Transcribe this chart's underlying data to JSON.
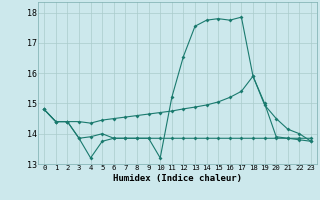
{
  "xlabel": "Humidex (Indice chaleur)",
  "bg_color": "#cce8ec",
  "grid_color": "#aacccc",
  "line_color": "#1a7a6e",
  "xlim": [
    -0.5,
    23.5
  ],
  "ylim": [
    13.0,
    18.35
  ],
  "yticks": [
    13,
    14,
    15,
    16,
    17,
    18
  ],
  "xticks": [
    0,
    1,
    2,
    3,
    4,
    5,
    6,
    7,
    8,
    9,
    10,
    11,
    12,
    13,
    14,
    15,
    16,
    17,
    18,
    19,
    20,
    21,
    22,
    23
  ],
  "line1_x": [
    0,
    1,
    2,
    3,
    4,
    5,
    6,
    7,
    8,
    9,
    10,
    11,
    12,
    13,
    14,
    15,
    16,
    17,
    18,
    19,
    20,
    21,
    22,
    23
  ],
  "line1_y": [
    14.8,
    14.4,
    14.4,
    13.85,
    13.2,
    13.75,
    13.85,
    13.85,
    13.85,
    13.85,
    13.85,
    13.85,
    13.85,
    13.85,
    13.85,
    13.85,
    13.85,
    13.85,
    13.85,
    13.85,
    13.85,
    13.85,
    13.85,
    13.85
  ],
  "line2_x": [
    0,
    1,
    2,
    3,
    4,
    5,
    6,
    7,
    8,
    9,
    10,
    11,
    12,
    13,
    14,
    15,
    16,
    17,
    18,
    19,
    20,
    21,
    22,
    23
  ],
  "line2_y": [
    14.8,
    14.4,
    14.4,
    13.85,
    13.9,
    14.0,
    13.85,
    13.85,
    13.85,
    13.85,
    13.2,
    15.2,
    16.55,
    17.55,
    17.75,
    17.8,
    17.75,
    17.85,
    15.9,
    15.0,
    13.9,
    13.85,
    13.8,
    13.75
  ],
  "line3_x": [
    0,
    1,
    2,
    3,
    4,
    5,
    6,
    7,
    8,
    9,
    10,
    11,
    12,
    13,
    14,
    15,
    16,
    17,
    18,
    19,
    20,
    21,
    22,
    23
  ],
  "line3_y": [
    14.8,
    14.4,
    14.4,
    14.4,
    14.35,
    14.45,
    14.5,
    14.55,
    14.6,
    14.65,
    14.7,
    14.75,
    14.82,
    14.88,
    14.95,
    15.05,
    15.2,
    15.4,
    15.9,
    14.95,
    14.5,
    14.15,
    14.0,
    13.75
  ]
}
